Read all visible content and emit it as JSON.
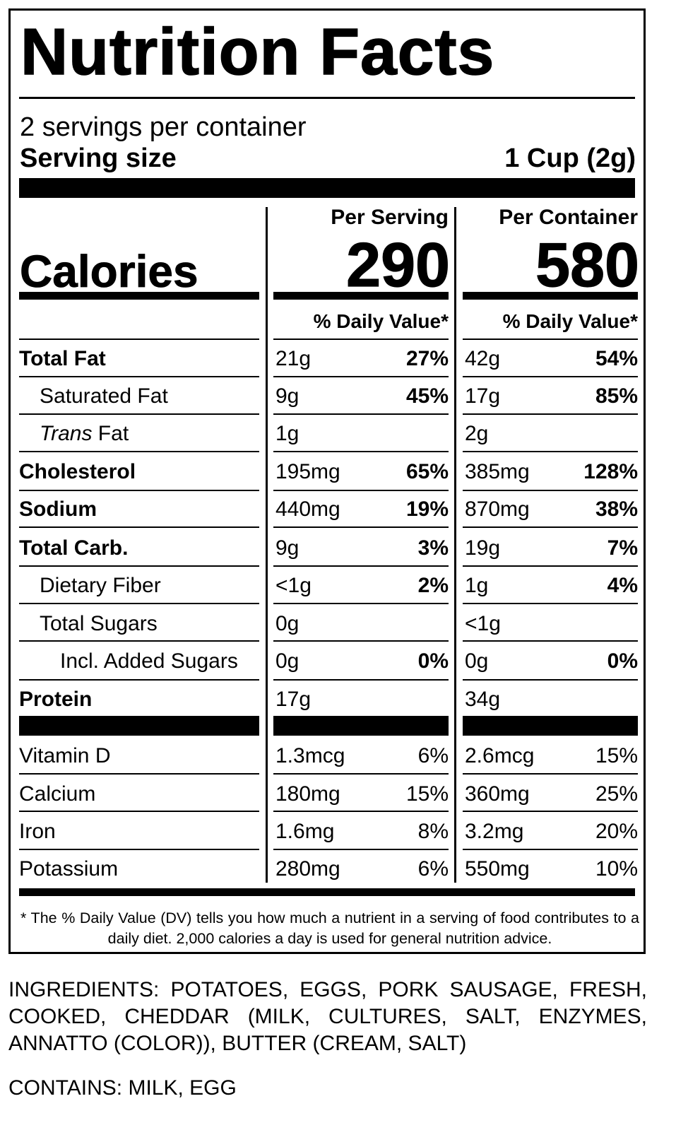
{
  "title": "Nutrition Facts",
  "servings_per_container": "2 servings per container",
  "serving_size_label": "Serving size",
  "serving_size_value": "1 Cup (2g)",
  "calories_label": "Calories",
  "columns": [
    {
      "header": "Per Serving",
      "calories": "290",
      "dv_header": "% Daily Value*"
    },
    {
      "header": "Per Container",
      "calories": "580",
      "dv_header": "% Daily Value*"
    }
  ],
  "nutrients": [
    {
      "name": "Total Fat",
      "bold": true,
      "indent": 0,
      "serving": {
        "amount": "21g",
        "dv": "27%"
      },
      "container": {
        "amount": "42g",
        "dv": "54%"
      }
    },
    {
      "name": "Saturated Fat",
      "bold": false,
      "indent": 1,
      "serving": {
        "amount": "9g",
        "dv": "45%"
      },
      "container": {
        "amount": "17g",
        "dv": "85%"
      }
    },
    {
      "name_italic": "Trans",
      "name": " Fat",
      "bold": false,
      "indent": 1,
      "serving": {
        "amount": "1g",
        "dv": ""
      },
      "container": {
        "amount": "2g",
        "dv": ""
      }
    },
    {
      "name": "Cholesterol",
      "bold": true,
      "indent": 0,
      "serving": {
        "amount": "195mg",
        "dv": "65%"
      },
      "container": {
        "amount": "385mg",
        "dv": "128%"
      }
    },
    {
      "name": "Sodium",
      "bold": true,
      "indent": 0,
      "serving": {
        "amount": "440mg",
        "dv": "19%"
      },
      "container": {
        "amount": "870mg",
        "dv": "38%"
      }
    },
    {
      "name": "Total Carb.",
      "bold": true,
      "indent": 0,
      "serving": {
        "amount": "9g",
        "dv": "3%"
      },
      "container": {
        "amount": "19g",
        "dv": "7%"
      }
    },
    {
      "name": "Dietary Fiber",
      "bold": false,
      "indent": 1,
      "serving": {
        "amount": "<1g",
        "dv": "2%"
      },
      "container": {
        "amount": "1g",
        "dv": "4%"
      }
    },
    {
      "name": "Total Sugars",
      "bold": false,
      "indent": 1,
      "serving": {
        "amount": "0g",
        "dv": ""
      },
      "container": {
        "amount": "<1g",
        "dv": ""
      }
    },
    {
      "name": "Incl. Added Sugars",
      "bold": false,
      "indent": 2,
      "serving": {
        "amount": "0g",
        "dv": "0%"
      },
      "container": {
        "amount": "0g",
        "dv": "0%"
      }
    },
    {
      "name": "Protein",
      "bold": true,
      "indent": 0,
      "serving": {
        "amount": "17g",
        "dv": ""
      },
      "container": {
        "amount": "34g",
        "dv": ""
      }
    }
  ],
  "vitamins": [
    {
      "name": "Vitamin D",
      "serving": {
        "amount": "1.3mcg",
        "dv": "6%"
      },
      "container": {
        "amount": "2.6mcg",
        "dv": "15%"
      }
    },
    {
      "name": "Calcium",
      "serving": {
        "amount": "180mg",
        "dv": "15%"
      },
      "container": {
        "amount": "360mg",
        "dv": "25%"
      }
    },
    {
      "name": "Iron",
      "serving": {
        "amount": "1.6mg",
        "dv": "8%"
      },
      "container": {
        "amount": "3.2mg",
        "dv": "20%"
      }
    },
    {
      "name": "Potassium",
      "serving": {
        "amount": "280mg",
        "dv": "6%"
      },
      "container": {
        "amount": "550mg",
        "dv": "10%"
      }
    }
  ],
  "footnote": "* The % Daily Value (DV) tells you how much a nutrient in a serving of food contributes to a daily diet. 2,000 calories a day is used for general nutrition advice.",
  "ingredients": "INGREDIENTS: POTATOES, EGGS, PORK SAUSAGE, FRESH, COOKED, CHEDDAR (MILK, CULTURES, SALT, ENZYMES, ANNATTO (COLOR)), BUTTER (CREAM, SALT)",
  "contains": "CONTAINS: MILK, EGG"
}
